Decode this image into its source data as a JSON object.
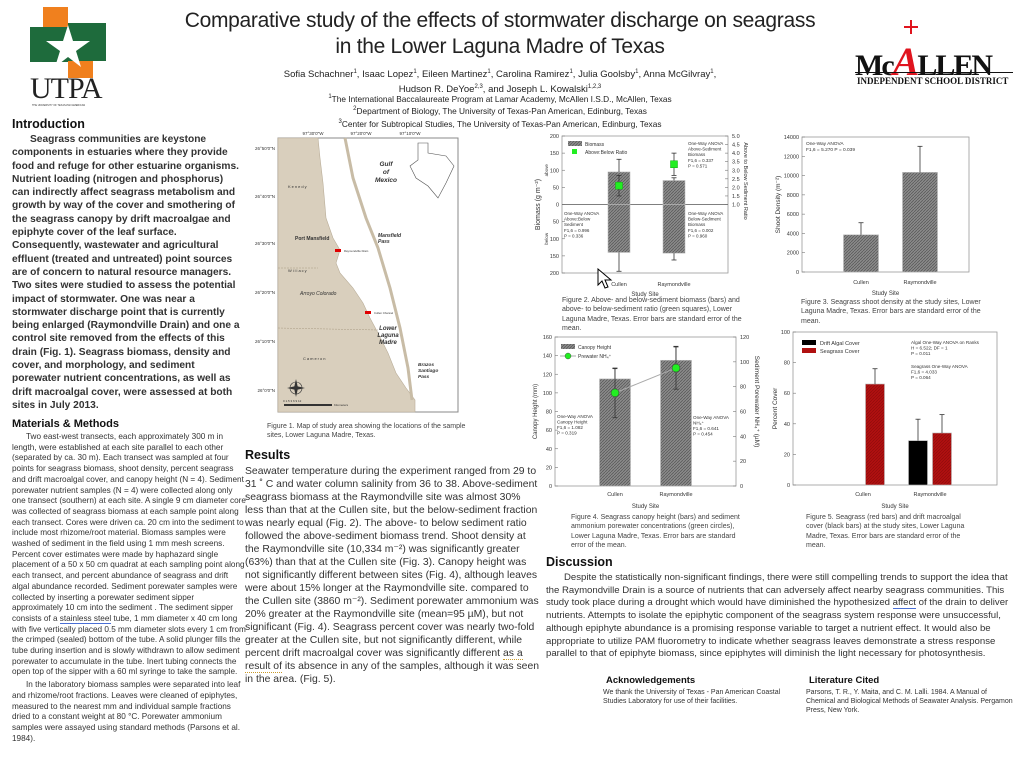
{
  "header": {
    "title_line1": "Comparative study of the effects of stormwater discharge on seagrass",
    "title_line2": "in the Lower Laguna Madre of Texas",
    "authors": [
      {
        "name": "Sofia Schachner",
        "aff": "1"
      },
      {
        "name": "Isaac Lopez",
        "aff": "1"
      },
      {
        "name": "Eileen Martinez",
        "aff": "1"
      },
      {
        "name": "Carolina Ramirez",
        "aff": "1"
      },
      {
        "name": "Julia Goolsby",
        "aff": "1"
      },
      {
        "name": "Anna McGilvray",
        "aff": "1"
      },
      {
        "name": "Hudson R. DeYoe",
        "aff": "2,3"
      },
      {
        "name": "and Joseph L. Kowalski",
        "aff": "1,2,3"
      }
    ],
    "affiliations": [
      {
        "num": "1",
        "text": "The International Baccalaureate Program at Lamar Academy, McAllen I.S.D., McAllen, Texas"
      },
      {
        "num": "2",
        "text": "Department of Biology, The University of Texas-Pan American, Edinburg, Texas"
      },
      {
        "num": "3",
        "text": "Center for Subtropical Studies, The University of Texas-Pan American, Edinburg, Texas"
      }
    ]
  },
  "logos": {
    "left": {
      "text": "UTPA",
      "subtext": "THE UNIVERSITY OF TEXAS-PAN AMERICAN",
      "orange": "#f0801e",
      "green": "#1e6b3c"
    },
    "right": {
      "text_pre": "Mc",
      "text_a": "A",
      "text_post": "LLEN",
      "subtext": "INDEPENDENT SCHOOL DISTRICT",
      "red": "#e0141e"
    }
  },
  "introduction": {
    "heading": "Introduction",
    "text": "Seagrass communities are keystone components in estuaries where they provide food and refuge for other estuarine organisms. Nutrient loading (nitrogen and phosphorus) can indirectly affect seagrass metabolism and growth by way of the cover and smothering of the seagrass canopy by drift macroalgae and epiphyte cover of the leaf surface. Consequently, wastewater and agricultural effluent (treated and untreated) point sources are of concern to natural resource managers. Two sites were studied to assess the potential impact of stormwater. One was near a stormwater discharge point that is currently being enlarged (Raymondville Drain) and one a control site removed from the effects of this drain (Fig. 1). Seagrass biomass, density and cover, and morphology, and sediment porewater nutrient concentrations, as well as drift macroalgal cover, were assessed at both sites in July 2013."
  },
  "methods": {
    "heading": "Materials & Methods",
    "p1_a": "Two east-west transects, each approximately 300 m in length,  were established at each site parallel to each other (separated by ca. 30 m). Each transect was sampled at four points for seagrass biomass, shoot density, percent seagrass and drift macroalgal cover, and canopy height (N = 4). Sediment porewater nutrient samples (N = 4) were collected along only one transect (southern) at each site. A single 9 cm diameter core was collected of seagrass biomass at each sample point along each transect. Cores were driven ca. 20 cm into the sediment to include most rhizome/root material. Biomass samples were washed of sediment in the field using 1 mm mesh screens. Percent cover estimates were made by haphazard single placement of a 50 x 50 cm quadrat at each sampling point  along each transect, and percent abundance of seagrass and drift algal abundance recorded. Sediment porewater samples were collected by inserting a porewater sediment sipper approximately 10 cm into the sediment . The sediment sipper consists of a ",
    "p1_link": "stainless steel",
    "p1_b": " tube, 1 mm diameter x 40 cm long with five vertically placed 0.5 mm diameter slots every 1 cm from the crimped (sealed) bottom of the tube. A solid plunger fills the tube during insertion and is slowly withdrawn to allow sediment porewater to accumulate in the tube. Inert tubing connects the open top of the sipper with a 60 ml syringe to take the sample.",
    "p2": "In the laboratory biomass samples were separated into leaf and rhizome/root fractions. Leaves were cleaned of epiphytes, measured to the nearest mm and individual sample fractions dried to a constant weight at 80 °C. Porewater ammonium samples were assayed using standard methods (Parsons et al. 1984)."
  },
  "map": {
    "lat_labels": [
      "26°50'0\"N",
      "26°40'0\"N",
      "26°30'0\"N",
      "26°20'0\"N",
      "26°10'0\"N",
      "26°0'0\"N"
    ],
    "lon_labels": [
      "97°30'0\"W",
      "97°20'0\"W",
      "97°10'0\"W"
    ],
    "place_labels": {
      "gulf": "Gulf of Mexico",
      "kenedy": "Kenedy",
      "port_mansfield": "Port Mansfield",
      "mansfield_pass": "Mansfield Pass",
      "raymondville_drain": "Raymondville Drain",
      "willacy": "Willacy",
      "arroyo": "Arroyo Colorado",
      "cullen": "Cullen Channel",
      "llm": "Lower Laguna Madre",
      "cameron": "Cameron",
      "brazos": "Brazos Santiago Pass"
    },
    "scale_label": "0 1.5 3   6   9   12",
    "scale_unit": "Kilometers",
    "land_color": "#d9cfbd",
    "site_color": "#e00000",
    "caption": "Figure 1. Map of study area showing the locations of the sample sites, Lower Laguna Madre, Texas."
  },
  "results": {
    "heading": "Results",
    "text_a": "Seawater temperature during the experiment ranged from 29 to 31 ˚ C and water column salinity from 36 to 38. Above-sediment seagrass biomass at the Raymondville site was almost 30% less than that at the Cullen site, but the below-sediment fraction was nearly equal (Fig. 2). The above- to below sediment ratio followed the above-sediment biomass trend. Shoot density at the Raymondville site (10,334 m⁻²) was significantly greater (63%) than that at the Cullen site (Fig. 3). Canopy height was not significantly different between sites (Fig. 4), although leaves were about 15% longer at the Raymondville site. compared to the Cullen site (3860 m⁻²). Sediment porewater ammonium was 20% greater at the Raymondville site (mean=95 µM), but not significant (Fig. 4). Seagrass percent cover was nearly two-fold greater at the Cullen site, but not significantly different, while percent drift macroalgal cover was significantly different ",
    "text_flag": "as a result of",
    "text_b": " its absence in any of the samples, although it was seen in the area. (Fig. 5)."
  },
  "discussion": {
    "heading": "Discussion",
    "text_a": "Despite the statistically non-significant findings, there were still compelling trends to support the idea that the Raymondville Drain is a source of nutrients that can adversely affect nearby seagrass communities. This study took place during a drought which would have diminished the hypothesized ",
    "text_link": "affect",
    "text_b": " of the drain to deliver nutrients. Attempts to isolate the epiphytic component of the seagrass system response were unsuccessful, although epiphyte abundance is a promising response variable to target a nutrient effect. It would also be appropriate to utilize PAM fluorometry to indicate whether seagrass leaves demonstrate a stress response parallel to that of epiphyte biomass, since epiphytes will diminish the light necessary for photosynthesis."
  },
  "acknowledgements": {
    "heading": "Acknowledgements",
    "text": "We thank the University of Texas - Pan American Coastal Studies Laboratory for use of their facilities."
  },
  "literature": {
    "heading": "Literature Cited",
    "text": "Parsons, T. R., Y. Maita, and C. M. Lalli. 1984. A Manual of Chemical and Biological Methods of Seawater Analysis. Pergamon Press, New York."
  },
  "chart_data": [
    {
      "id": "fig2",
      "type": "bar",
      "xlabel": "Study Site",
      "ylabel": "Biomass (g m⁻²)",
      "ylabel_above": "above",
      "ylabel_below": "below",
      "y2label": "Above to Below Sediment Ratio",
      "categories": [
        "Cullen",
        "Raymondville"
      ],
      "ylim": [
        -200,
        200
      ],
      "yticks": [
        -200,
        -150,
        -100,
        -50,
        0,
        50,
        100,
        150,
        200
      ],
      "y2lim": [
        -3,
        5
      ],
      "y2ticks": [
        1.0,
        1.5,
        2.0,
        2.5,
        3.0,
        3.5,
        4.0,
        4.5,
        5.0
      ],
      "series": [
        {
          "name": "Biomass",
          "above": [
            95,
            70
          ],
          "above_err": [
            37,
            8
          ],
          "below": [
            140,
            142
          ],
          "below_err": [
            55,
            20
          ],
          "color": "#7a7a7a"
        },
        {
          "name": "Above:Below Ratio",
          "axis": "y2",
          "values": [
            2.1,
            3.35
          ],
          "err": [
            0.6,
            0.65
          ],
          "color": "#22ee22"
        }
      ],
      "annotations": [
        [
          "One-Way ANOVA",
          "Above-Sediment",
          "Biomass",
          "F1,6 = 0.337",
          "P = 0.571"
        ],
        [
          "One-Way ANOVA",
          "Above:Below",
          "Sediment",
          "F1,6 = 0.996",
          "P = 0.336"
        ],
        [
          "One-Way ANOVA",
          "Below-Sediment",
          "Biomass",
          "F1,6 = 0.002",
          "P = 0.960"
        ]
      ],
      "caption": "Figure 2. Above- and below-sediment biomass (bars) and above- to below-sediment ratio (green squares), Lower Laguna Madre, Texas. Error bars are standard error of the mean."
    },
    {
      "id": "fig3",
      "type": "bar",
      "xlabel": "Study Site",
      "ylabel": "Shoot Density (m⁻²)",
      "categories": [
        "Cullen",
        "Raymondville"
      ],
      "ylim": [
        0,
        14000
      ],
      "yticks": [
        0,
        2000,
        4000,
        6000,
        8000,
        10000,
        12000,
        14000
      ],
      "series": [
        {
          "name": "Shoot Density",
          "values": [
            3860,
            10334
          ],
          "err": [
            1250,
            2700
          ],
          "color": "#7a7a7a"
        }
      ],
      "annotations": [
        [
          "One-Way ANOVA",
          "F1,6 = 5.270  P = 0.039"
        ]
      ],
      "caption": "Figure 3. Seagrass shoot density at the study sites, Lower Laguna Madre, Texas. Error bars are standard error of the mean."
    },
    {
      "id": "fig4",
      "type": "bar",
      "xlabel": "Study Site",
      "ylabel": "Canopy Height (mm)",
      "y2label": "Sediment Porewater NH₄⁺ (µM)",
      "categories": [
        "Cullen",
        "Raymondville"
      ],
      "ylim": [
        0,
        160
      ],
      "yticks": [
        0,
        20,
        40,
        60,
        80,
        100,
        120,
        140,
        160
      ],
      "y2lim": [
        0,
        120
      ],
      "y2ticks": [
        0,
        20,
        40,
        60,
        80,
        100,
        120
      ],
      "series": [
        {
          "name": "Canopy Height",
          "values": [
            115,
            135
          ],
          "err": [
            11,
            15
          ],
          "color": "#7a7a7a"
        },
        {
          "name": "Prewater NH₄⁺",
          "axis": "y2",
          "values": [
            75,
            95
          ],
          "err": [
            20,
            17
          ],
          "color": "#22ee22"
        }
      ],
      "annotations": [
        [
          "One-Way ANOVA",
          "Canopy Height",
          "F1,6 = 1.082",
          "P = 0.319"
        ],
        [
          "One-Way ANOVA",
          "NH₄⁺",
          "F1,6 = 0.641",
          "P = 0.454"
        ]
      ],
      "caption": "Figure 4. Seagrass canopy height (bars) and sediment ammonium porewater  concentrations (green  circles), Lower Laguna Madre, Texas. Error bars are standard error of the mean."
    },
    {
      "id": "fig5",
      "type": "bar",
      "xlabel": "Study Site",
      "ylabel": "Percent Cover",
      "categories": [
        "Cullen",
        "Raymondville"
      ],
      "ylim": [
        0,
        100
      ],
      "yticks": [
        0,
        20,
        40,
        60,
        80,
        100
      ],
      "series": [
        {
          "name": "Drift Algal Cover",
          "values": [
            0,
            29
          ],
          "err": [
            0,
            14
          ],
          "color": "#000000"
        },
        {
          "name": "Seagrass Cover",
          "values": [
            66,
            34
          ],
          "err": [
            10,
            12
          ],
          "color": "#b01010"
        }
      ],
      "annotations": [
        [
          "Algal One-Way ANOVA on Ranks",
          "H = 6.522; DF = 1",
          "P = 0.011"
        ],
        [
          "Seagrass One-Way ANOVA",
          "F1,6 = 4.033",
          "P = 0.064"
        ]
      ],
      "caption": "Figure 5. Seagrass (red bars) and drift macroalgal cover (black bars) at the study sites, Lower Laguna Madre, Texas. Error bars are standard error of the mean."
    }
  ]
}
